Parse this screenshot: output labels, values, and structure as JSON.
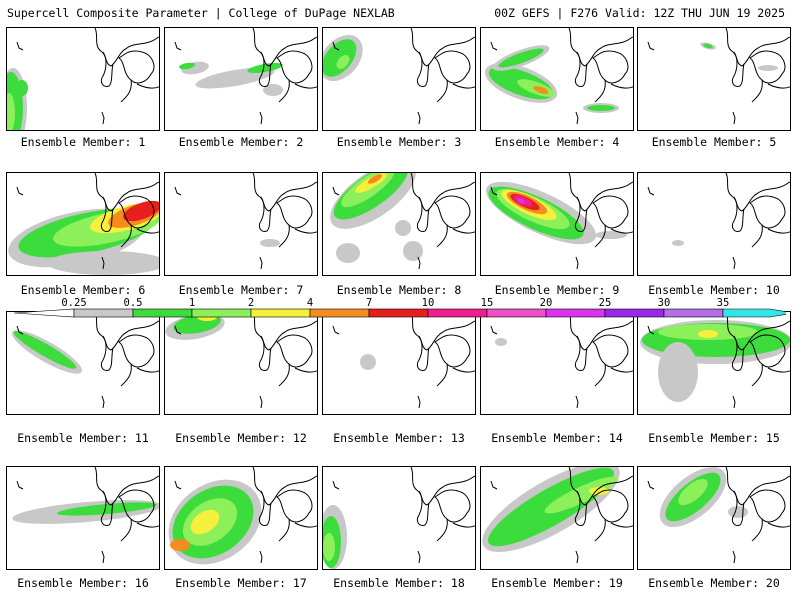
{
  "header": {
    "left": "Supercell Composite Parameter | College of DuPage NEXLAB",
    "right": "00Z GEFS | F276 Valid: 12Z THU JUN 19 2025"
  },
  "panels": [
    {
      "label": "Ensemble Member: 1"
    },
    {
      "label": "Ensemble Member: 2"
    },
    {
      "label": "Ensemble Member: 3"
    },
    {
      "label": "Ensemble Member: 4"
    },
    {
      "label": "Ensemble Member: 5"
    },
    {
      "label": "Ensemble Member: 6"
    },
    {
      "label": "Ensemble Member: 7"
    },
    {
      "label": "Ensemble Member: 8"
    },
    {
      "label": "Ensemble Member: 9"
    },
    {
      "label": "Ensemble Member: 10"
    },
    {
      "label": "Ensemble Member: 11"
    },
    {
      "label": "Ensemble Member: 12"
    },
    {
      "label": "Ensemble Member: 13"
    },
    {
      "label": "Ensemble Member: 14"
    },
    {
      "label": "Ensemble Member: 15"
    },
    {
      "label": "Ensemble Member: 16"
    },
    {
      "label": "Ensemble Member: 17"
    },
    {
      "label": "Ensemble Member: 18"
    },
    {
      "label": "Ensemble Member: 19"
    },
    {
      "label": "Ensemble Member: 20"
    }
  ],
  "legend": {
    "ticks": [
      "0.25",
      "0.5",
      "1",
      "2",
      "4",
      "7",
      "10",
      "15",
      "20",
      "25",
      "30",
      "35"
    ],
    "colors": [
      "#c8c8c8",
      "#3cdc3c",
      "#8cf05a",
      "#f5f03c",
      "#f58c1e",
      "#e61e1e",
      "#f01e8c",
      "#f050c8",
      "#dc32f0",
      "#9b28e6",
      "#b46ee6",
      "#32e6e6"
    ]
  }
}
